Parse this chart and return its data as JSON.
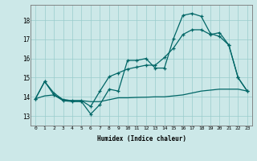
{
  "xlabel": "Humidex (Indice chaleur)",
  "background_color": "#cce8e8",
  "grid_color": "#99cccc",
  "line_color": "#006666",
  "xlim": [
    -0.5,
    23.5
  ],
  "ylim": [
    12.5,
    18.8
  ],
  "yticks": [
    13,
    14,
    15,
    16,
    17,
    18
  ],
  "xticks": [
    0,
    1,
    2,
    3,
    4,
    5,
    6,
    7,
    8,
    9,
    10,
    11,
    12,
    13,
    14,
    15,
    16,
    17,
    18,
    19,
    20,
    21,
    22,
    23
  ],
  "line1_x": [
    0,
    1,
    2,
    3,
    4,
    5,
    6,
    7,
    8,
    9,
    10,
    11,
    12,
    13,
    14,
    15,
    16,
    17,
    18,
    19,
    20,
    21,
    22,
    23
  ],
  "line1_y": [
    13.9,
    14.8,
    14.1,
    13.8,
    13.75,
    13.75,
    13.1,
    13.6,
    14.4,
    14.3,
    15.9,
    15.9,
    16.0,
    15.5,
    15.5,
    17.05,
    18.25,
    18.35,
    18.2,
    17.3,
    17.15,
    16.7,
    15.0,
    14.3
  ],
  "line2_x": [
    0,
    1,
    2,
    3,
    4,
    5,
    6,
    7,
    8,
    9,
    10,
    11,
    12,
    13,
    14,
    15,
    16,
    17,
    18,
    19,
    20,
    21,
    22,
    23
  ],
  "line2_y": [
    13.9,
    14.05,
    14.1,
    13.85,
    13.8,
    13.8,
    13.75,
    13.75,
    13.85,
    13.95,
    13.95,
    13.97,
    13.98,
    14.0,
    14.0,
    14.05,
    14.1,
    14.2,
    14.3,
    14.35,
    14.4,
    14.4,
    14.4,
    14.3
  ],
  "line3_x": [
    0,
    1,
    2,
    3,
    4,
    5,
    6,
    7,
    8,
    9,
    10,
    11,
    12,
    13,
    14,
    15,
    16,
    17,
    18,
    19,
    20,
    21,
    22,
    23
  ],
  "line3_y": [
    13.9,
    14.8,
    14.2,
    13.85,
    13.8,
    13.8,
    13.5,
    14.3,
    15.05,
    15.25,
    15.45,
    15.55,
    15.65,
    15.65,
    16.05,
    16.55,
    17.25,
    17.5,
    17.5,
    17.25,
    17.35,
    16.7,
    15.0,
    14.3
  ]
}
